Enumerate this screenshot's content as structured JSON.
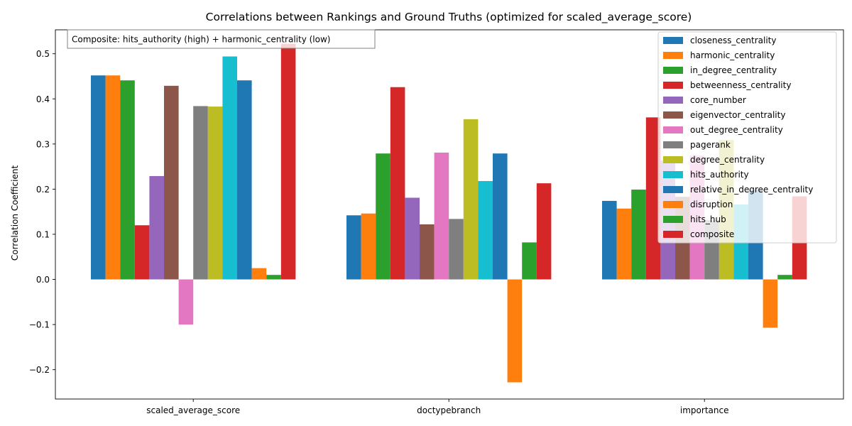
{
  "chart_data": {
    "type": "bar",
    "title": "Correlations between Rankings and Ground Truths (optimized for scaled_average_score)",
    "xlabel": "",
    "ylabel": "Correlation Coefficient",
    "ylim": [
      -0.265,
      0.553
    ],
    "yticks": [
      -0.2,
      -0.1,
      0.0,
      0.1,
      0.2,
      0.3,
      0.4,
      0.5
    ],
    "ytick_labels": [
      "−0.2",
      "−0.1",
      "0.0",
      "0.1",
      "0.2",
      "0.3",
      "0.4",
      "0.5"
    ],
    "grid": false,
    "legend_position": "top-right",
    "annotation": "Composite: hits_authority (high) + harmonic_centrality (low)",
    "categories": [
      "scaled_average_score",
      "doctypebranch",
      "importance"
    ],
    "series": [
      {
        "name": "closeness_centrality",
        "color": "#1f77b4",
        "values": [
          0.452,
          0.142,
          0.174
        ]
      },
      {
        "name": "harmonic_centrality",
        "color": "#ff7f0e",
        "values": [
          0.452,
          0.146,
          0.157
        ]
      },
      {
        "name": "in_degree_centrality",
        "color": "#2ca02c",
        "values": [
          0.441,
          0.279,
          0.199
        ]
      },
      {
        "name": "betweenness_centrality",
        "color": "#d62728",
        "values": [
          0.12,
          0.426,
          0.359
        ]
      },
      {
        "name": "core_number",
        "color": "#9467bd",
        "values": [
          0.229,
          0.181,
          0.263
        ]
      },
      {
        "name": "eigenvector_centrality",
        "color": "#8c564b",
        "values": [
          0.429,
          0.122,
          0.183
        ]
      },
      {
        "name": "out_degree_centrality",
        "color": "#e377c2",
        "values": [
          -0.1,
          0.281,
          0.274
        ]
      },
      {
        "name": "pagerank",
        "color": "#7f7f7f",
        "values": [
          0.384,
          0.134,
          0.131
        ]
      },
      {
        "name": "degree_centrality",
        "color": "#bcbd22",
        "values": [
          0.383,
          0.355,
          0.309
        ]
      },
      {
        "name": "hits_authority",
        "color": "#17becf",
        "values": [
          0.494,
          0.218,
          0.166
        ]
      },
      {
        "name": "relative_in_degree_centrality",
        "color": "#1f77b4",
        "values": [
          0.441,
          0.279,
          0.199
        ]
      },
      {
        "name": "disruption",
        "color": "#ff7f0e",
        "values": [
          0.025,
          -0.228,
          -0.107
        ]
      },
      {
        "name": "hits_hub",
        "color": "#2ca02c",
        "values": [
          0.01,
          0.082,
          0.01
        ]
      },
      {
        "name": "composite",
        "color": "#d62728",
        "values": [
          0.522,
          0.213,
          0.184
        ]
      }
    ]
  }
}
